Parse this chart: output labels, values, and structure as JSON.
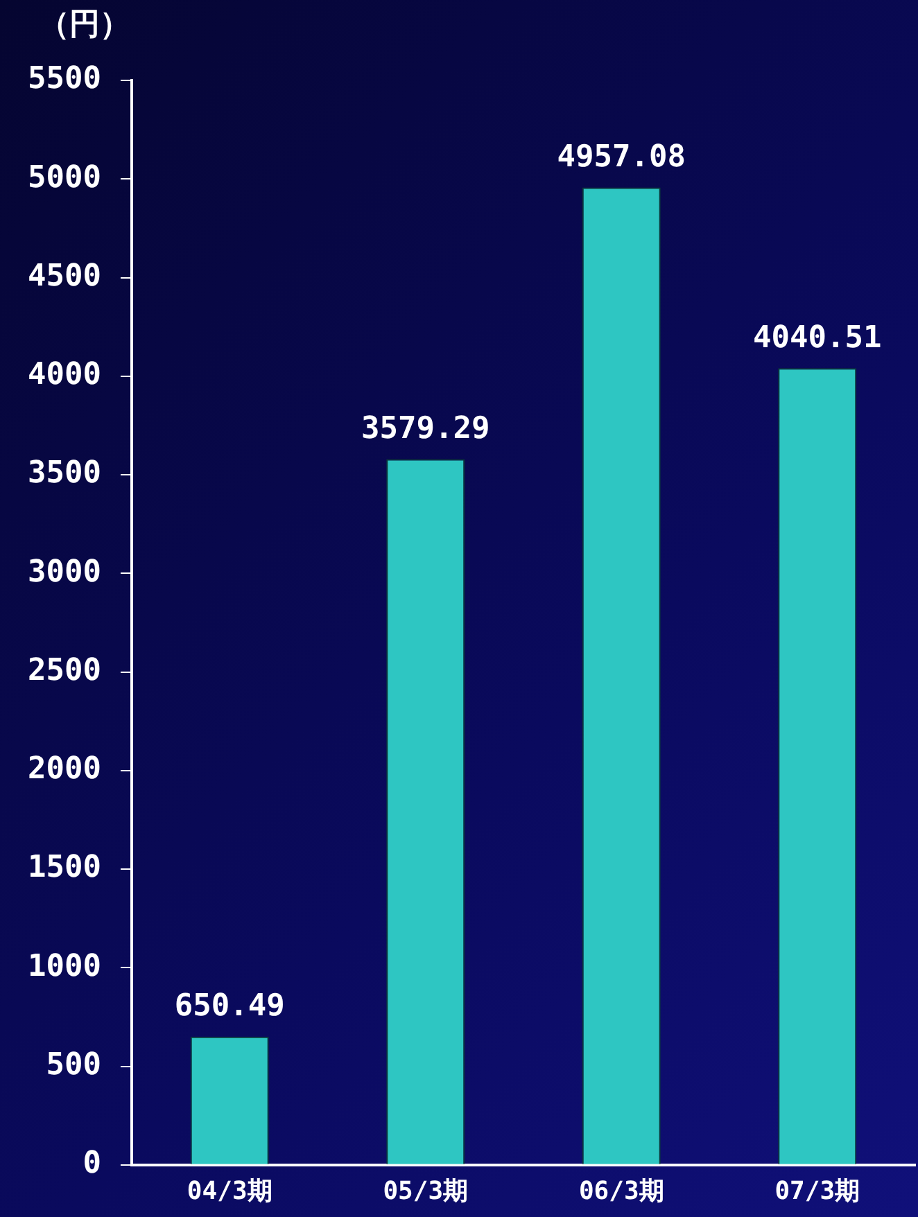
{
  "chart_data": {
    "type": "bar",
    "ylabel": "（円）",
    "categories": [
      "04/3期",
      "05/3期",
      "06/3期",
      "07/3期"
    ],
    "values": [
      650.49,
      3579.29,
      4957.08,
      4040.51
    ],
    "color": "#2ec6c2",
    "ylim": [
      0,
      5500
    ],
    "yticks": [
      0,
      500,
      1000,
      1500,
      2000,
      2500,
      3000,
      3500,
      4000,
      4500,
      5000,
      5500
    ],
    "grid": false,
    "legend": false,
    "data_labels": true
  }
}
